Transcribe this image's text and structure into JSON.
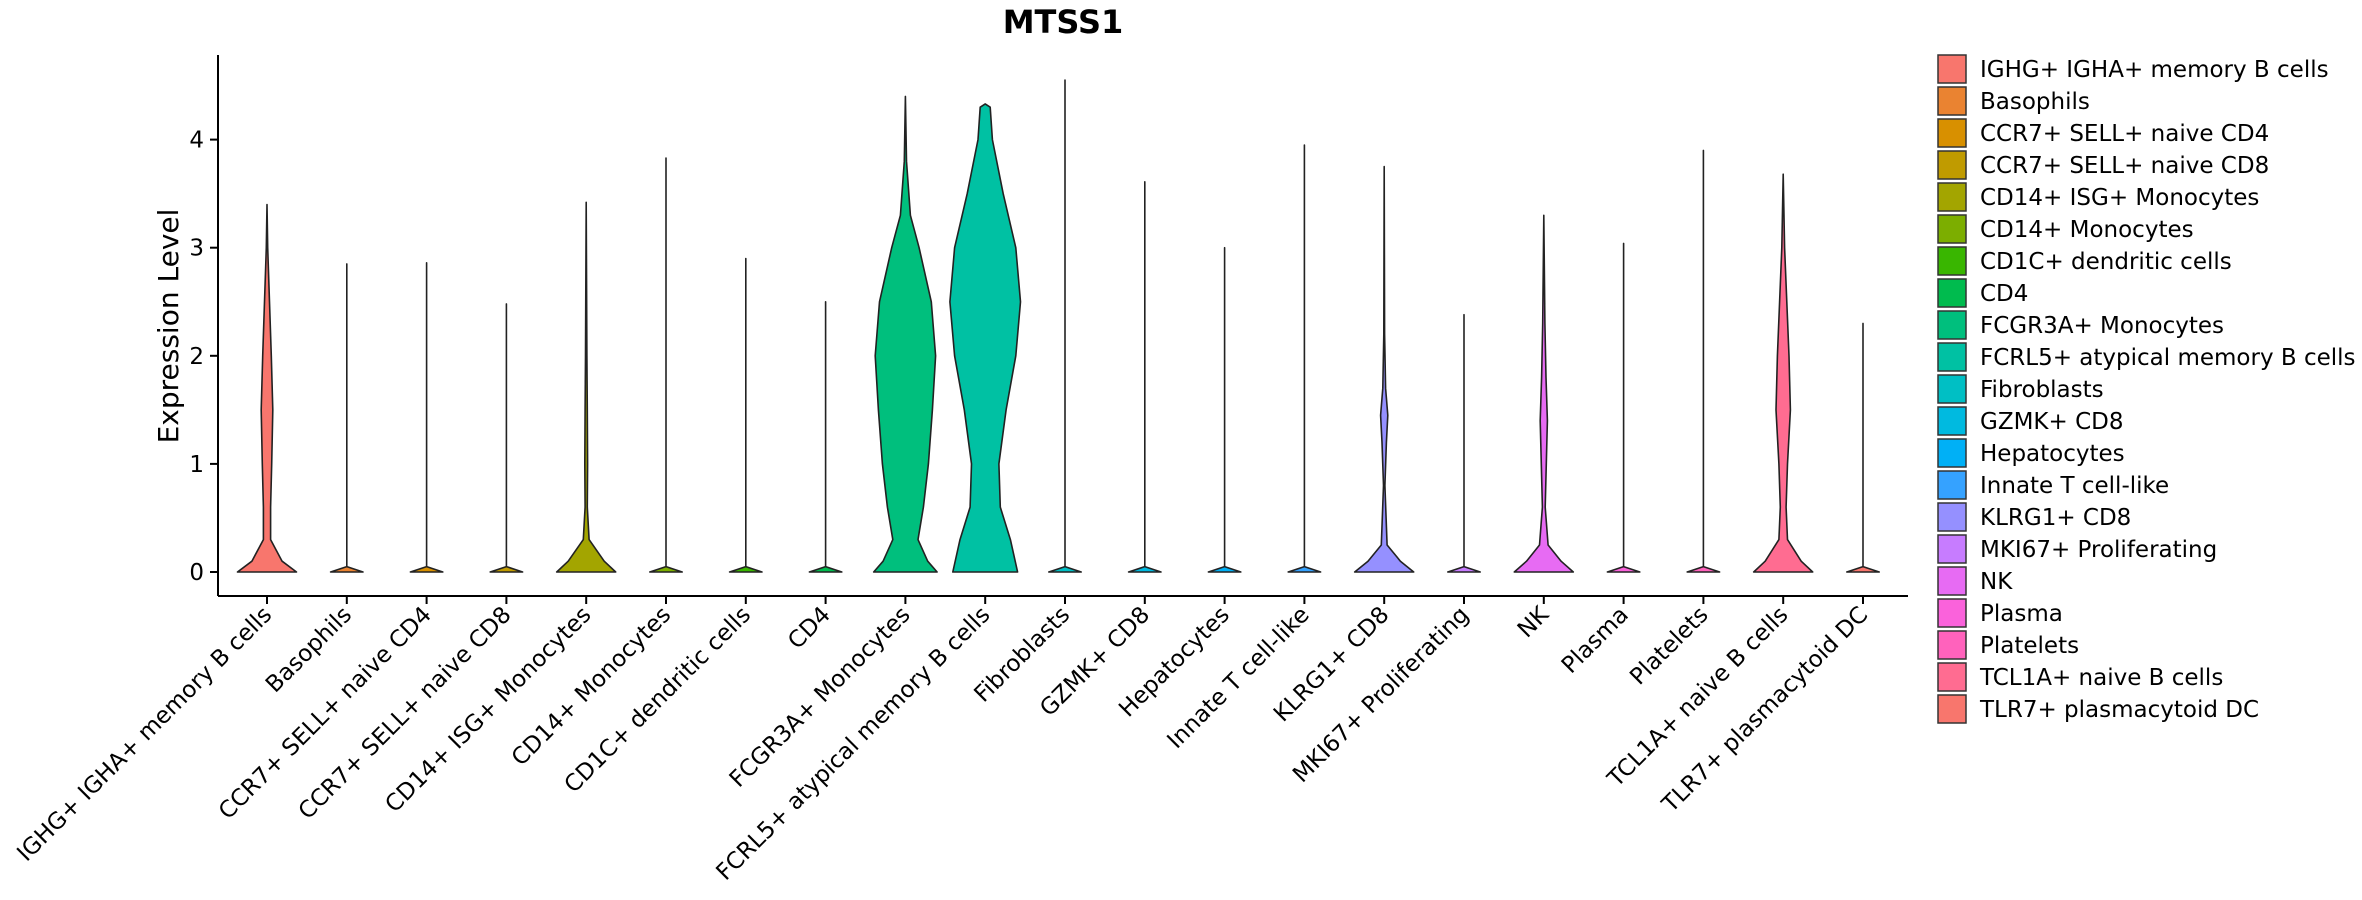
{
  "chart_data": {
    "type": "violin",
    "title": "MTSS1",
    "xlabel": "",
    "ylabel": "Expression Level",
    "ylim": [
      -0.22,
      4.75
    ],
    "yticks": [
      0,
      1,
      2,
      3,
      4
    ],
    "categories": [
      " IGHG+ IGHA+ memory B cells",
      "Basophils",
      "CCR7+ SELL+ naive CD4",
      "CCR7+ SELL+ naive CD8",
      "CD14+ ISG+ Monocytes",
      "CD14+ Monocytes",
      "CD1C+ dendritic cells",
      "CD4",
      "FCGR3A+ Monocytes",
      "FCRL5+ atypical memory B cells",
      "Fibroblasts",
      "GZMK+ CD8",
      "Hepatocytes",
      "Innate T cell-like",
      "KLRG1+ CD8",
      "MKI67+ Proliferating",
      "NK",
      "Plasma",
      "Platelets",
      "TCL1A+ naive B cells",
      "TLR7+ plasmacytoid DC"
    ],
    "colors": [
      "#F8766D",
      "#EA8331",
      "#D89000",
      "#C09B00",
      "#A3A500",
      "#7CAE00",
      "#39B600",
      "#00BB4E",
      "#00BF7D",
      "#00C1A3",
      "#00BFC4",
      "#00BAE0",
      "#00B0F6",
      "#35A2FF",
      "#9590FF",
      "#C77CFF",
      "#E76BF3",
      "#FA62DB",
      "#FF62BC",
      "#FF6C91",
      "#F8766D"
    ],
    "max_values": [
      3.4,
      2.85,
      2.86,
      2.48,
      3.42,
      3.83,
      2.9,
      2.5,
      4.4,
      4.33,
      4.55,
      3.61,
      3.0,
      3.95,
      3.75,
      2.38,
      3.3,
      3.04,
      3.9,
      3.68,
      2.3
    ],
    "densities": [
      [
        [
          0,
          0.82
        ],
        [
          0.1,
          0.42
        ],
        [
          0.3,
          0.1
        ],
        [
          0.6,
          0.1
        ],
        [
          1.0,
          0.13
        ],
        [
          1.5,
          0.16
        ],
        [
          2.0,
          0.12
        ],
        [
          2.5,
          0.07
        ],
        [
          3.0,
          0.02
        ],
        [
          3.4,
          0
        ]
      ],
      [
        [
          0,
          0.45
        ],
        [
          0.05,
          0
        ],
        [
          2.85,
          0
        ]
      ],
      [
        [
          0,
          0.45
        ],
        [
          0.05,
          0
        ],
        [
          2.86,
          0
        ]
      ],
      [
        [
          0,
          0.45
        ],
        [
          0.05,
          0
        ],
        [
          2.48,
          0
        ]
      ],
      [
        [
          0,
          0.82
        ],
        [
          0.1,
          0.5
        ],
        [
          0.3,
          0.08
        ],
        [
          0.6,
          0.03
        ],
        [
          1.0,
          0.04
        ],
        [
          1.5,
          0.03
        ],
        [
          2.0,
          0.02
        ],
        [
          3.42,
          0
        ]
      ],
      [
        [
          0,
          0.45
        ],
        [
          0.05,
          0
        ],
        [
          3.83,
          0
        ]
      ],
      [
        [
          0,
          0.45
        ],
        [
          0.05,
          0
        ],
        [
          2.9,
          0
        ]
      ],
      [
        [
          0,
          0.45
        ],
        [
          0.05,
          0
        ],
        [
          2.5,
          0
        ]
      ],
      [
        [
          0,
          0.88
        ],
        [
          0.1,
          0.62
        ],
        [
          0.3,
          0.35
        ],
        [
          0.6,
          0.5
        ],
        [
          1.0,
          0.64
        ],
        [
          1.5,
          0.75
        ],
        [
          2.0,
          0.84
        ],
        [
          2.5,
          0.72
        ],
        [
          3.0,
          0.38
        ],
        [
          3.3,
          0.14
        ],
        [
          3.8,
          0.03
        ],
        [
          4.4,
          0
        ]
      ],
      [
        [
          0,
          0.9
        ],
        [
          0.3,
          0.7
        ],
        [
          0.6,
          0.42
        ],
        [
          1.0,
          0.38
        ],
        [
          1.5,
          0.58
        ],
        [
          2.0,
          0.85
        ],
        [
          2.5,
          0.98
        ],
        [
          3.0,
          0.85
        ],
        [
          3.5,
          0.5
        ],
        [
          4.0,
          0.2
        ],
        [
          4.3,
          0.14
        ],
        [
          4.33,
          0
        ]
      ],
      [
        [
          0,
          0.45
        ],
        [
          0.05,
          0
        ],
        [
          4.55,
          0
        ]
      ],
      [
        [
          0,
          0.45
        ],
        [
          0.05,
          0
        ],
        [
          3.61,
          0
        ]
      ],
      [
        [
          0,
          0.45
        ],
        [
          0.05,
          0
        ],
        [
          3.0,
          0
        ]
      ],
      [
        [
          0,
          0.45
        ],
        [
          0.05,
          0
        ],
        [
          3.95,
          0
        ]
      ],
      [
        [
          0,
          0.82
        ],
        [
          0.1,
          0.45
        ],
        [
          0.25,
          0.08
        ],
        [
          0.8,
          0.02
        ],
        [
          1.2,
          0.06
        ],
        [
          1.45,
          0.1
        ],
        [
          1.7,
          0.04
        ],
        [
          2.2,
          0.01
        ],
        [
          3.75,
          0
        ]
      ],
      [
        [
          0,
          0.45
        ],
        [
          0.05,
          0
        ],
        [
          2.38,
          0
        ]
      ],
      [
        [
          0,
          0.82
        ],
        [
          0.1,
          0.48
        ],
        [
          0.25,
          0.12
        ],
        [
          0.6,
          0.04
        ],
        [
          1.0,
          0.07
        ],
        [
          1.4,
          0.1
        ],
        [
          1.8,
          0.06
        ],
        [
          2.3,
          0.03
        ],
        [
          3.3,
          0
        ]
      ],
      [
        [
          0,
          0.45
        ],
        [
          0.05,
          0
        ],
        [
          3.04,
          0
        ]
      ],
      [
        [
          0,
          0.45
        ],
        [
          0.05,
          0
        ],
        [
          3.9,
          0
        ]
      ],
      [
        [
          0,
          0.82
        ],
        [
          0.1,
          0.5
        ],
        [
          0.3,
          0.12
        ],
        [
          0.6,
          0.08
        ],
        [
          1.0,
          0.12
        ],
        [
          1.5,
          0.2
        ],
        [
          2.0,
          0.16
        ],
        [
          2.5,
          0.1
        ],
        [
          3.0,
          0.04
        ],
        [
          3.68,
          0
        ]
      ],
      [
        [
          0,
          0.45
        ],
        [
          0.05,
          0
        ],
        [
          2.3,
          0
        ]
      ]
    ]
  }
}
